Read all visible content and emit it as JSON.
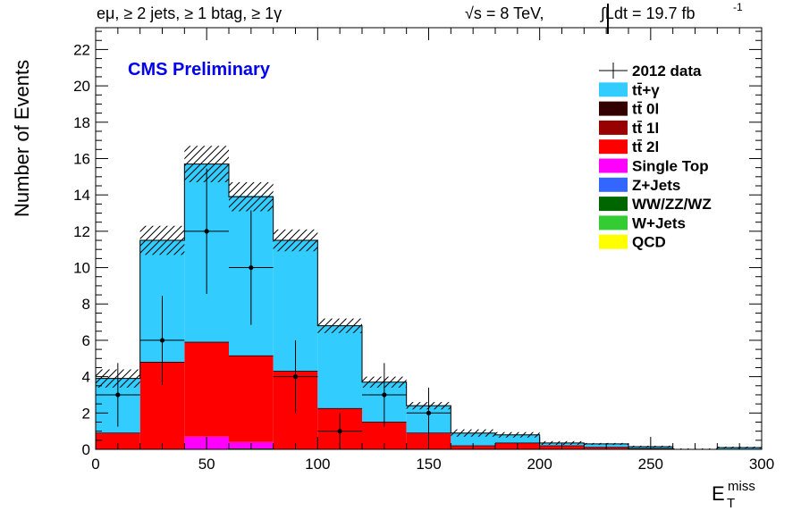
{
  "header": {
    "selection": "eμ, ≥ 2 jets, ≥ 1 btag, ≥ 1γ",
    "energy": "√s = 8 TeV,",
    "lumi": "∫Ldt = 19.7 fb",
    "lumi_exp": "-1"
  },
  "chart_data": {
    "type": "bar",
    "title": "CMS Preliminary",
    "title_color": "#0000ee",
    "xlabel": "E_T^miss",
    "xlabel_main": "E",
    "xlabel_sub": "T",
    "xlabel_sup": "miss",
    "ylabel": "Number of Events",
    "xlim": [
      0,
      300
    ],
    "ylim": [
      0,
      23.2
    ],
    "bin_width": 20,
    "bin_edges": [
      0,
      20,
      40,
      60,
      80,
      100,
      120,
      140,
      160,
      180,
      200,
      220,
      240,
      260,
      280,
      300
    ],
    "x_ticks": [
      0,
      50,
      100,
      150,
      200,
      250,
      300
    ],
    "x_tick_labels": [
      "0",
      "50",
      "100",
      "150",
      "200",
      "250",
      "300"
    ],
    "y_ticks": [
      0,
      2,
      4,
      6,
      8,
      10,
      12,
      14,
      16,
      18,
      20,
      22
    ],
    "y_tick_labels": [
      "0",
      "2",
      "4",
      "6",
      "8",
      "10",
      "12",
      "14",
      "16",
      "18",
      "20",
      "22"
    ],
    "legend_position": "top-right",
    "stacked_series": [
      {
        "name": "QCD",
        "color": "#ffff00",
        "values": [
          0,
          0,
          0,
          0,
          0,
          0,
          0,
          0,
          0,
          0,
          0,
          0,
          0,
          0,
          0
        ]
      },
      {
        "name": "W+Jets",
        "color": "#33cc33",
        "values": [
          0,
          0,
          0,
          0,
          0,
          0,
          0,
          0,
          0,
          0,
          0,
          0,
          0,
          0,
          0
        ]
      },
      {
        "name": "WW/ZZ/WZ",
        "color": "#006600",
        "values": [
          0,
          0,
          0,
          0.05,
          0,
          0,
          0,
          0,
          0,
          0,
          0,
          0,
          0,
          0,
          0
        ]
      },
      {
        "name": "Z+Jets",
        "color": "#3366ff",
        "values": [
          0,
          0,
          0,
          0,
          0,
          0,
          0,
          0,
          0,
          0,
          0,
          0,
          0,
          0,
          0
        ]
      },
      {
        "name": "Single Top",
        "color": "#ff00ff",
        "values": [
          0,
          0,
          0.7,
          0.35,
          0,
          0,
          0,
          0,
          0,
          0,
          0,
          0,
          0,
          0,
          0
        ]
      },
      {
        "name": "tt̄ 2l",
        "color": "#ff0000",
        "values": [
          0.9,
          4.8,
          5.2,
          4.75,
          4.3,
          2.25,
          1.5,
          0.9,
          0.2,
          0.35,
          0.2,
          0.12,
          0.05,
          0,
          0
        ]
      },
      {
        "name": "tt̄ 1l",
        "color": "#990000",
        "values": [
          0,
          0,
          0,
          0,
          0,
          0,
          0,
          0,
          0,
          0,
          0,
          0,
          0,
          0,
          0
        ]
      },
      {
        "name": "tt̄ 0l",
        "color": "#330000",
        "values": [
          0,
          0,
          0,
          0,
          0,
          0,
          0,
          0,
          0,
          0,
          0,
          0,
          0,
          0,
          0
        ]
      },
      {
        "name": "tt̄+γ",
        "color": "#33ccff",
        "values": [
          3.0,
          6.7,
          9.8,
          8.8,
          7.2,
          4.55,
          2.2,
          1.5,
          0.7,
          0.45,
          0.15,
          0.18,
          0.1,
          0,
          0.1
        ]
      }
    ],
    "stack_total": [
      3.9,
      11.5,
      15.7,
      13.9,
      11.5,
      6.8,
      3.7,
      2.4,
      0.9,
      0.8,
      0.35,
      0.3,
      0.15,
      0,
      0.1
    ],
    "uncertainty_band": {
      "hatch": "diagonal",
      "upper": [
        4.4,
        12.3,
        16.7,
        14.7,
        12.1,
        7.2,
        4.0,
        2.6,
        1.1,
        0.95,
        0.45,
        0.35,
        0.2,
        0.05,
        0.15
      ],
      "lower": [
        3.4,
        10.7,
        14.7,
        13.1,
        10.9,
        6.4,
        3.4,
        2.2,
        0.7,
        0.65,
        0.25,
        0.25,
        0.1,
        0,
        0.05
      ]
    },
    "data": {
      "name": "2012 data",
      "x": [
        10,
        30,
        50,
        70,
        90,
        110,
        130,
        150
      ],
      "y": [
        3,
        6,
        12,
        10,
        4,
        1,
        3,
        2
      ],
      "yerr": [
        1.75,
        2.45,
        3.45,
        3.15,
        2.0,
        1.0,
        1.75,
        1.4
      ]
    },
    "legend_order": [
      "2012 data",
      "tt̄+γ",
      "tt̄ 0l",
      "tt̄ 1l",
      "tt̄ 2l",
      "Single Top",
      "Z+Jets",
      "WW/ZZ/WZ",
      "W+Jets",
      "QCD"
    ]
  }
}
